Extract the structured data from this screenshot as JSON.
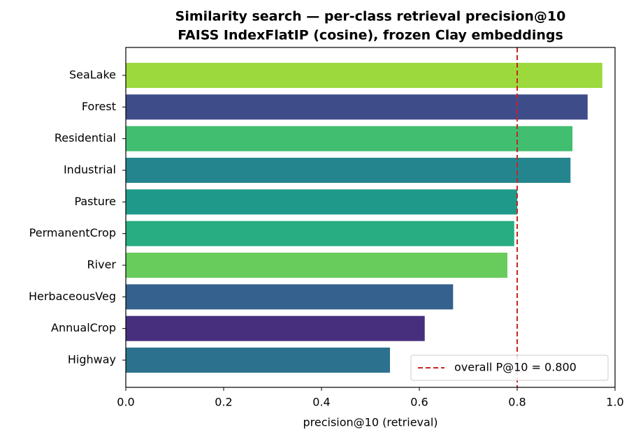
{
  "chart_data": {
    "type": "barh",
    "title": [
      "Similarity search — per-class retrieval precision@10",
      "FAISS IndexFlatIP (cosine), frozen Clay embeddings"
    ],
    "x_label": "precision@10 (retrieval)",
    "categories": [
      "SeaLake",
      "Forest",
      "Residential",
      "Industrial",
      "Pasture",
      "PermanentCrop",
      "River",
      "HerbaceousVeg",
      "AnnualCrop",
      "Highway"
    ],
    "values": [
      0.974,
      0.944,
      0.913,
      0.909,
      0.8,
      0.794,
      0.78,
      0.669,
      0.611,
      0.54
    ],
    "colors": [
      "#9bd93c",
      "#3e4c8a",
      "#42be71",
      "#25858e",
      "#1f9a8a",
      "#27ad81",
      "#67cc5c",
      "#34618d",
      "#472f7d",
      "#2c728e"
    ],
    "xlim": [
      0,
      1
    ],
    "xticks": [
      {
        "value": 0,
        "label": "0.0"
      },
      0.2,
      0.4,
      0.6,
      0.8,
      {
        "value": 1,
        "label": "1.0"
      }
    ],
    "reference_line": {
      "value": 0.8,
      "label": "overall P@10 = 0.800",
      "color": "#c82423"
    },
    "legend": "lower right"
  }
}
